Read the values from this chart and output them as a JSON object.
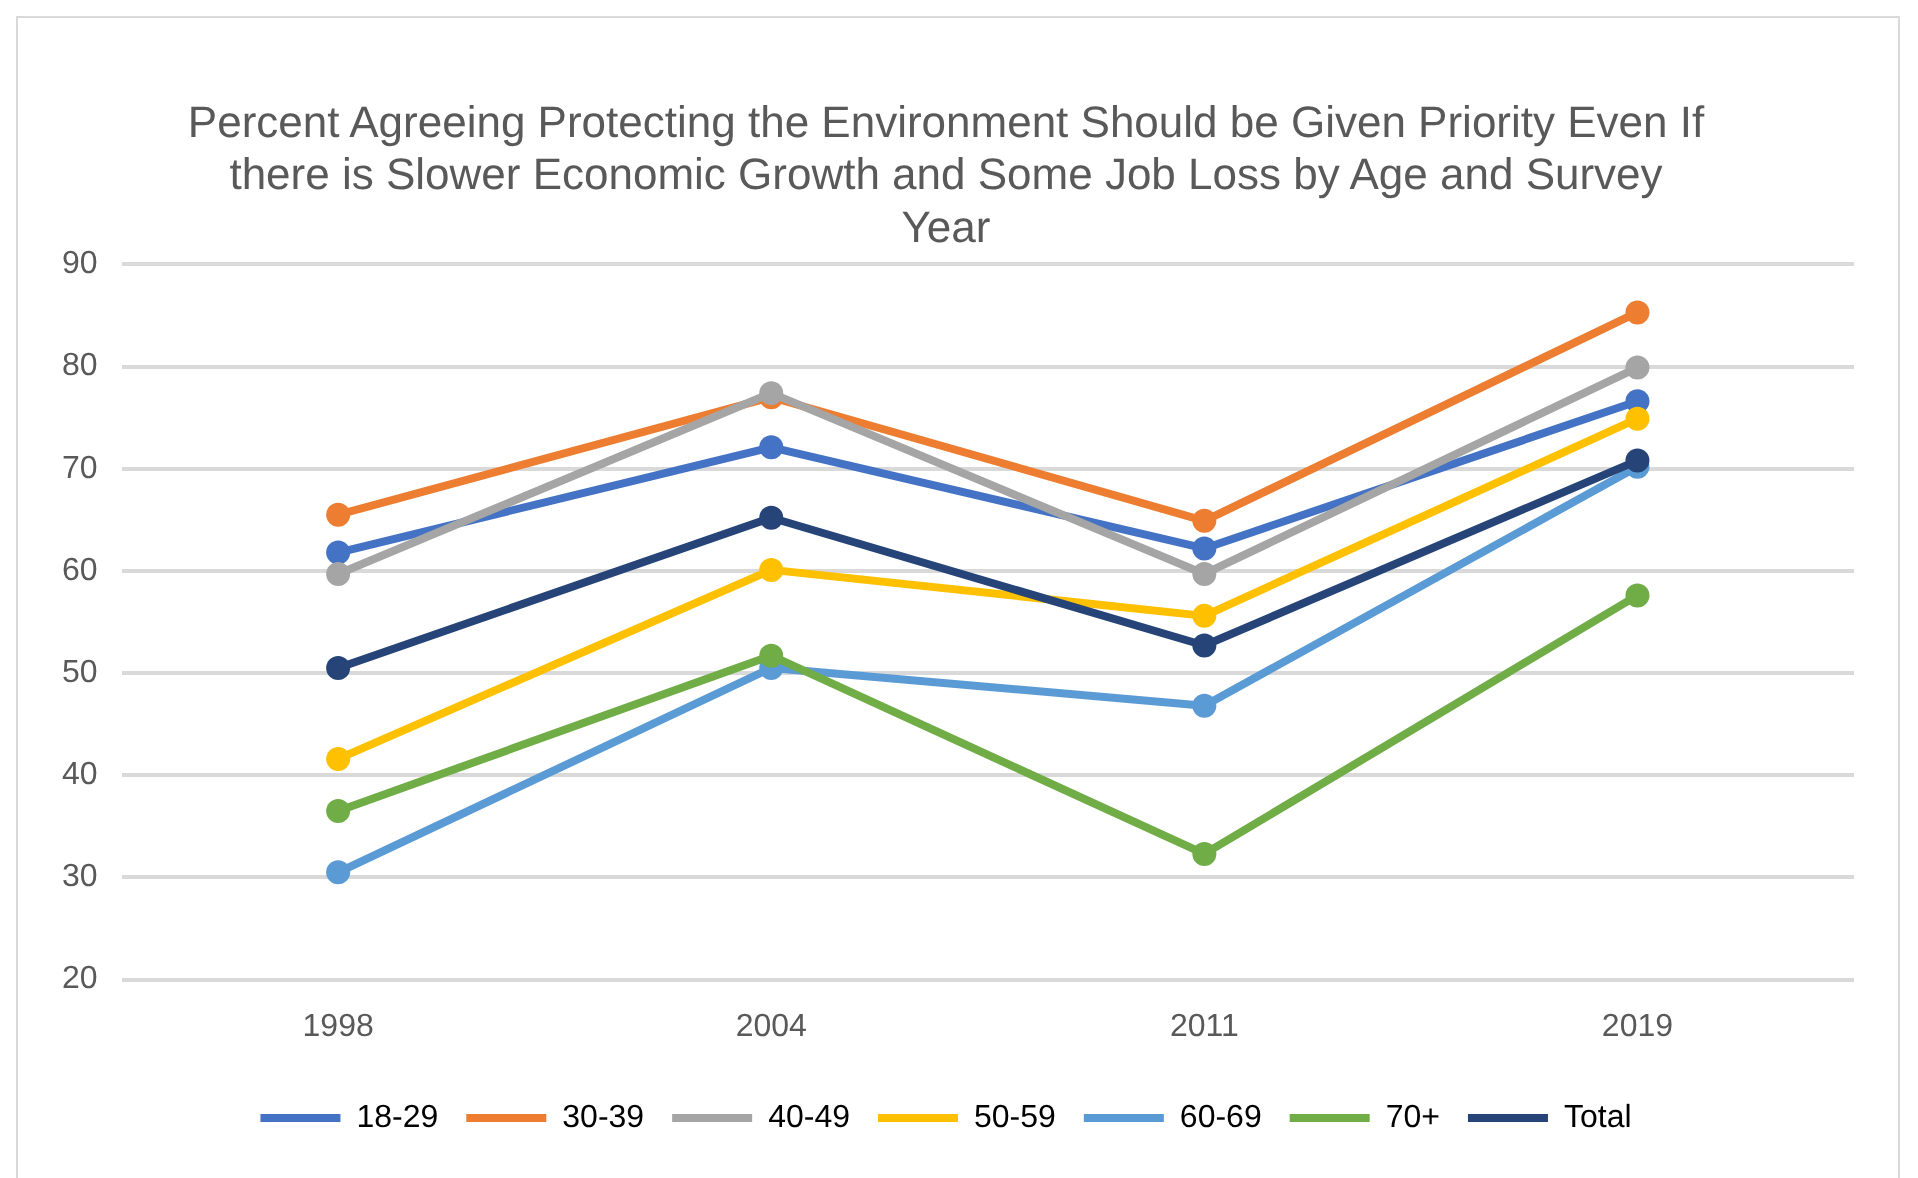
{
  "chart_data": {
    "type": "line",
    "title": "Percent Agreeing Protecting the Environment Should be Given Priority Even If there is Slower Economic Growth and Some Job Loss by Age and Survey Year",
    "categories": [
      "1998",
      "2004",
      "2011",
      "2019"
    ],
    "series": [
      {
        "name": "18-29",
        "color": "#4472c4",
        "values": [
          61.8,
          72.1,
          62.2,
          76.6
        ]
      },
      {
        "name": "30-39",
        "color": "#ed7d31",
        "values": [
          65.5,
          77.0,
          64.9,
          85.3
        ]
      },
      {
        "name": "40-49",
        "color": "#a5a5a5",
        "values": [
          59.7,
          77.4,
          59.7,
          79.9
        ]
      },
      {
        "name": "50-59",
        "color": "#ffc000",
        "values": [
          41.6,
          60.1,
          55.6,
          74.9
        ]
      },
      {
        "name": "60-69",
        "color": "#5b9bd5",
        "values": [
          30.5,
          50.5,
          46.8,
          70.2
        ]
      },
      {
        "name": "70+",
        "color": "#70ad47",
        "values": [
          36.5,
          51.7,
          32.3,
          57.6
        ]
      },
      {
        "name": "Total",
        "color": "#264478",
        "values": [
          50.5,
          65.2,
          52.7,
          70.8
        ]
      }
    ],
    "ylim": [
      20,
      90
    ],
    "yticks": [
      20,
      30,
      40,
      50,
      60,
      70,
      80,
      90
    ],
    "grid": "y",
    "legend": "bottom",
    "marker": "circle",
    "line_style": "solid"
  }
}
